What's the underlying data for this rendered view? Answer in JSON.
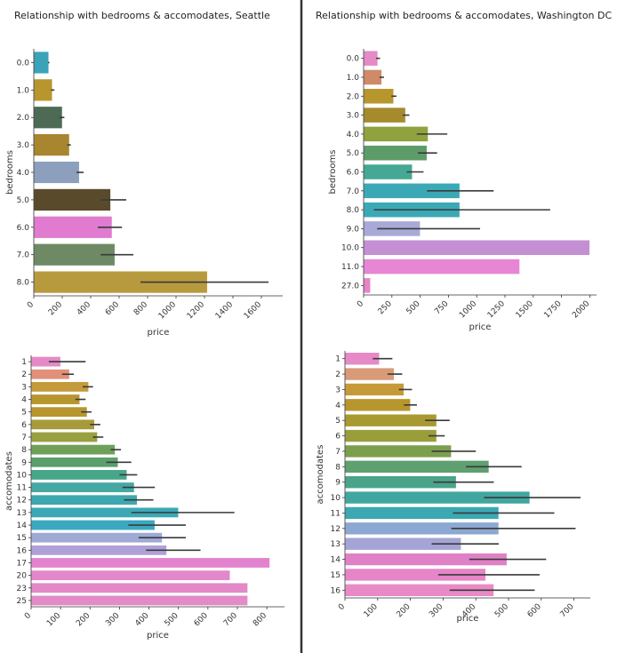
{
  "chart_data": [
    {
      "type": "bar",
      "orientation": "horizontal",
      "title": "Relationship with bedrooms & accomodates, Seattle",
      "xlabel": "price",
      "ylabel": "bedrooms",
      "xlim": [
        0,
        1750
      ],
      "xticks": [
        0,
        200,
        400,
        600,
        800,
        1000,
        1200,
        1400,
        1600
      ],
      "grid": false,
      "categories": [
        "0.0",
        "1.0",
        "2.0",
        "3.0",
        "4.0",
        "5.0",
        "6.0",
        "7.0",
        "8.0"
      ],
      "values": [
        105,
        130,
        200,
        250,
        320,
        540,
        550,
        570,
        1220
      ],
      "error_low": [
        100,
        120,
        180,
        235,
        300,
        470,
        450,
        470,
        750
      ],
      "error_high": [
        110,
        145,
        215,
        260,
        350,
        650,
        620,
        700,
        1650
      ],
      "colors": [
        "#3ba3b8",
        "#b8962e",
        "#4d6a55",
        "#a8852f",
        "#8c9fbc",
        "#5a4a2c",
        "#e07bd0",
        "#6d8a65",
        "#b89a3e"
      ]
    },
    {
      "type": "bar",
      "orientation": "horizontal",
      "title": "Relationship with bedrooms & accomodates, Washington DC",
      "xlabel": "price",
      "ylabel": "bedrooms",
      "xlim": [
        0,
        2060
      ],
      "xticks": [
        0,
        250,
        500,
        750,
        1000,
        1250,
        1500,
        1750,
        2000
      ],
      "grid": false,
      "categories": [
        "0.0",
        "1.0",
        "2.0",
        "3.0",
        "4.0",
        "5.0",
        "6.0",
        "7.0",
        "8.0",
        "9.0",
        "10.0",
        "11.0",
        "27.0"
      ],
      "values": [
        125,
        160,
        265,
        370,
        570,
        560,
        430,
        850,
        850,
        500,
        2000,
        1380,
        60
      ],
      "error_low": [
        110,
        140,
        245,
        345,
        470,
        480,
        380,
        560,
        90,
        120,
        2000,
        1380,
        60
      ],
      "error_high": [
        145,
        180,
        290,
        405,
        740,
        650,
        530,
        1150,
        1650,
        1030,
        2000,
        1380,
        60
      ],
      "colors": [
        "#e58ac7",
        "#d08a6a",
        "#b8962e",
        "#a68a2e",
        "#8fa23e",
        "#5d9c69",
        "#44a894",
        "#3ba9b5",
        "#3ba9b5",
        "#a9a9d8",
        "#c58fd3",
        "#e686d4",
        "#e883c8"
      ]
    },
    {
      "type": "bar",
      "orientation": "horizontal",
      "title": "",
      "xlabel": "price",
      "ylabel": "accomodates",
      "xlim": [
        0,
        860
      ],
      "xticks": [
        0,
        100,
        200,
        300,
        400,
        500,
        600,
        700,
        800
      ],
      "grid": false,
      "categories": [
        "1",
        "2",
        "3",
        "4",
        "5",
        "6",
        "7",
        "8",
        "9",
        "10",
        "11",
        "12",
        "13",
        "14",
        "15",
        "16",
        "17",
        "20",
        "23",
        "25"
      ],
      "values": [
        100,
        130,
        195,
        165,
        190,
        215,
        225,
        285,
        295,
        325,
        350,
        360,
        500,
        420,
        445,
        460,
        810,
        675,
        735,
        735
      ],
      "error_low": [
        60,
        105,
        175,
        150,
        170,
        200,
        210,
        270,
        255,
        300,
        310,
        315,
        340,
        330,
        365,
        390,
        810,
        675,
        735,
        735
      ],
      "error_high": [
        185,
        145,
        210,
        185,
        205,
        235,
        245,
        305,
        340,
        360,
        420,
        415,
        690,
        525,
        525,
        575,
        810,
        675,
        735,
        735
      ],
      "colors": [
        "#e58ac7",
        "#e3907a",
        "#c49a3a",
        "#b8962e",
        "#b8962e",
        "#a89a3a",
        "#98a040",
        "#6fa05a",
        "#5aa06c",
        "#48a688",
        "#45a8a2",
        "#3ea8b0",
        "#3ba9b5",
        "#3aa9c0",
        "#9ea9d6",
        "#b0a0d8",
        "#e283d0",
        "#e387cc",
        "#e389c9",
        "#e38bc6"
      ]
    },
    {
      "type": "bar",
      "orientation": "horizontal",
      "title": "",
      "xlabel": "price",
      "ylabel": "accomodates",
      "xlim": [
        0,
        750
      ],
      "xticks": [
        0,
        100,
        200,
        300,
        400,
        500,
        600,
        700
      ],
      "grid": false,
      "categories": [
        "1",
        "2",
        "3",
        "4",
        "5",
        "6",
        "7",
        "8",
        "9",
        "10",
        "11",
        "12",
        "13",
        "14",
        "15",
        "16"
      ],
      "values": [
        105,
        150,
        180,
        200,
        280,
        280,
        325,
        440,
        340,
        565,
        470,
        470,
        355,
        495,
        430,
        455
      ],
      "error_low": [
        85,
        130,
        165,
        180,
        245,
        255,
        265,
        370,
        270,
        425,
        330,
        325,
        265,
        380,
        285,
        320
      ],
      "error_high": [
        145,
        175,
        205,
        220,
        320,
        305,
        400,
        540,
        455,
        720,
        640,
        705,
        470,
        615,
        595,
        580
      ],
      "colors": [
        "#e58ac7",
        "#d99a78",
        "#c69a38",
        "#b8962e",
        "#a89a30",
        "#9a9e3a",
        "#7c9f4e",
        "#5ea070",
        "#4aa48a",
        "#42a6a0",
        "#3ba8b2",
        "#8ca8d2",
        "#a4a4d6",
        "#e080c6",
        "#e685c8",
        "#e88ac5"
      ]
    }
  ]
}
